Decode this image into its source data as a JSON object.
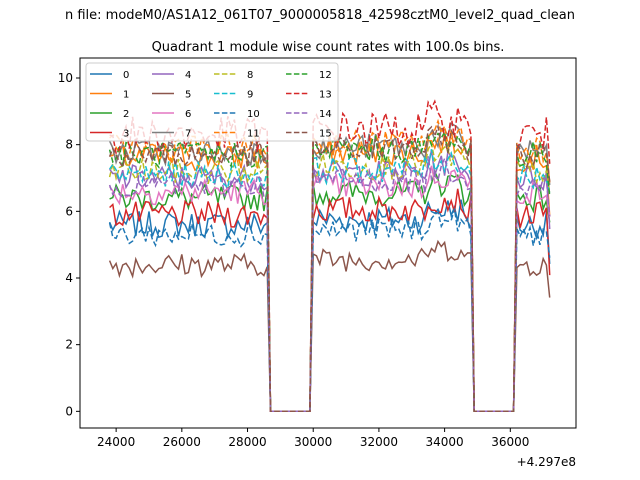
{
  "figure": {
    "suptitle": "...n file: modeM0/AS1A12_061T07_9000005818_42598cztM0_level2_quad_clean",
    "suptitle_visible": "n file: modeM0/AS1A12_061T07_9000005818_42598cztM0_level2_quad_clean"
  },
  "chart_data": {
    "type": "line",
    "title": "Quadrant 1 module wise count rates with 100.0s bins.",
    "xlabel": "",
    "ylabel": "",
    "x_offset_label": "+4.297e8",
    "xlim": [
      22900,
      38000
    ],
    "ylim": [
      -0.5,
      10.6
    ],
    "xticks": [
      24000,
      26000,
      28000,
      30000,
      32000,
      34000,
      36000
    ],
    "xtick_labels": [
      "24000",
      "26000",
      "28000",
      "30000",
      "32000",
      "34000",
      "36000"
    ],
    "yticks": [
      0,
      2,
      4,
      6,
      8,
      10
    ],
    "ytick_labels": [
      "0",
      "2",
      "4",
      "6",
      "8",
      "10"
    ],
    "grid": false,
    "legend_position": "top-left",
    "legend_columns": 4,
    "segments": [
      [
        23800,
        28600
      ],
      [
        30000,
        34800
      ],
      [
        36200,
        37200
      ]
    ],
    "gap_ramps": [
      [
        28700,
        28800
      ],
      [
        29900,
        30000
      ],
      [
        34800,
        34900
      ],
      [
        36100,
        36200
      ]
    ],
    "gaps_value": 0,
    "bin_seconds": 100,
    "series": [
      {
        "name": "0",
        "color": "#1f77b4",
        "style": "solid",
        "level": 5.6,
        "amp": 0.25,
        "end": 4.6
      },
      {
        "name": "1",
        "color": "#ff7f0e",
        "style": "solid",
        "level": 7.6,
        "amp": 0.25,
        "end": 6.0
      },
      {
        "name": "2",
        "color": "#2ca02c",
        "style": "solid",
        "level": 6.4,
        "amp": 0.25,
        "end": 5.8
      },
      {
        "name": "3",
        "color": "#d62728",
        "style": "solid",
        "level": 5.9,
        "amp": 0.25,
        "end": 4.0
      },
      {
        "name": "4",
        "color": "#9467bd",
        "style": "solid",
        "level": 7.0,
        "amp": 0.25,
        "end": 5.4
      },
      {
        "name": "5",
        "color": "#8c564b",
        "style": "solid",
        "level": 4.4,
        "amp": 0.22,
        "end": 3.2
      },
      {
        "name": "6",
        "color": "#e377c2",
        "style": "solid",
        "level": 6.6,
        "amp": 0.25,
        "end": 5.6
      },
      {
        "name": "7",
        "color": "#7f7f7f",
        "style": "solid",
        "level": 7.8,
        "amp": 0.25,
        "end": 6.4
      },
      {
        "name": "8",
        "color": "#bcbd22",
        "style": "dashed",
        "level": 7.2,
        "amp": 0.25,
        "end": 6.2
      },
      {
        "name": "9",
        "color": "#17becf",
        "style": "dashed",
        "level": 7.1,
        "amp": 0.25,
        "end": 6.3
      },
      {
        "name": "10",
        "color": "#1f77b4",
        "style": "dashed",
        "level": 5.3,
        "amp": 0.22,
        "end": 4.8
      },
      {
        "name": "11",
        "color": "#ff7f0e",
        "style": "dashed",
        "level": 7.9,
        "amp": 0.25,
        "end": 6.8
      },
      {
        "name": "12",
        "color": "#2ca02c",
        "style": "dashed",
        "level": 7.7,
        "amp": 0.25,
        "end": 6.6
      },
      {
        "name": "13",
        "color": "#d62728",
        "style": "dashed",
        "level": 8.3,
        "amp": 0.35,
        "end": 6.9
      },
      {
        "name": "14",
        "color": "#9467bd",
        "style": "dashed",
        "level": 6.8,
        "amp": 0.25,
        "end": 5.9
      },
      {
        "name": "15",
        "color": "#8c564b",
        "style": "dashed",
        "level": 7.7,
        "amp": 0.25,
        "end": 6.9
      }
    ]
  }
}
